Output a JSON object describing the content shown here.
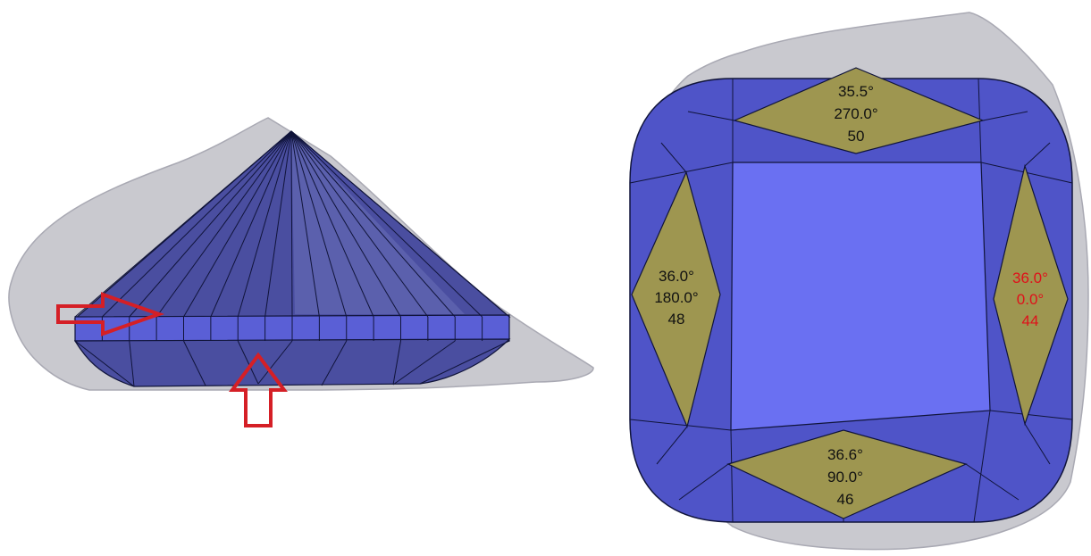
{
  "colors": {
    "rough": "#c9c9cf",
    "rough_edge": "#a9a9b3",
    "stone": "#5a5fd6",
    "stone_light": "#6f74ea",
    "stone_dark": "#3a3ea8",
    "side_stone": "#4a4ea0",
    "side_stone_light": "#7b80c8",
    "facet_line": "#10143a",
    "highlight_facet": "#9e9650",
    "arrow": "#d51f26",
    "label_default": "#111111",
    "label_highlight": "#e0101a"
  },
  "facets": {
    "top": {
      "angle": "35.5°",
      "azimuth": "270.0°",
      "index": "50"
    },
    "left": {
      "angle": "36.0°",
      "azimuth": "180.0°",
      "index": "48"
    },
    "right": {
      "angle": "36.0°",
      "azimuth": "0.0°",
      "index": "44"
    },
    "bottom": {
      "angle": "36.6°",
      "azimuth": "90.0°",
      "index": "46"
    }
  }
}
